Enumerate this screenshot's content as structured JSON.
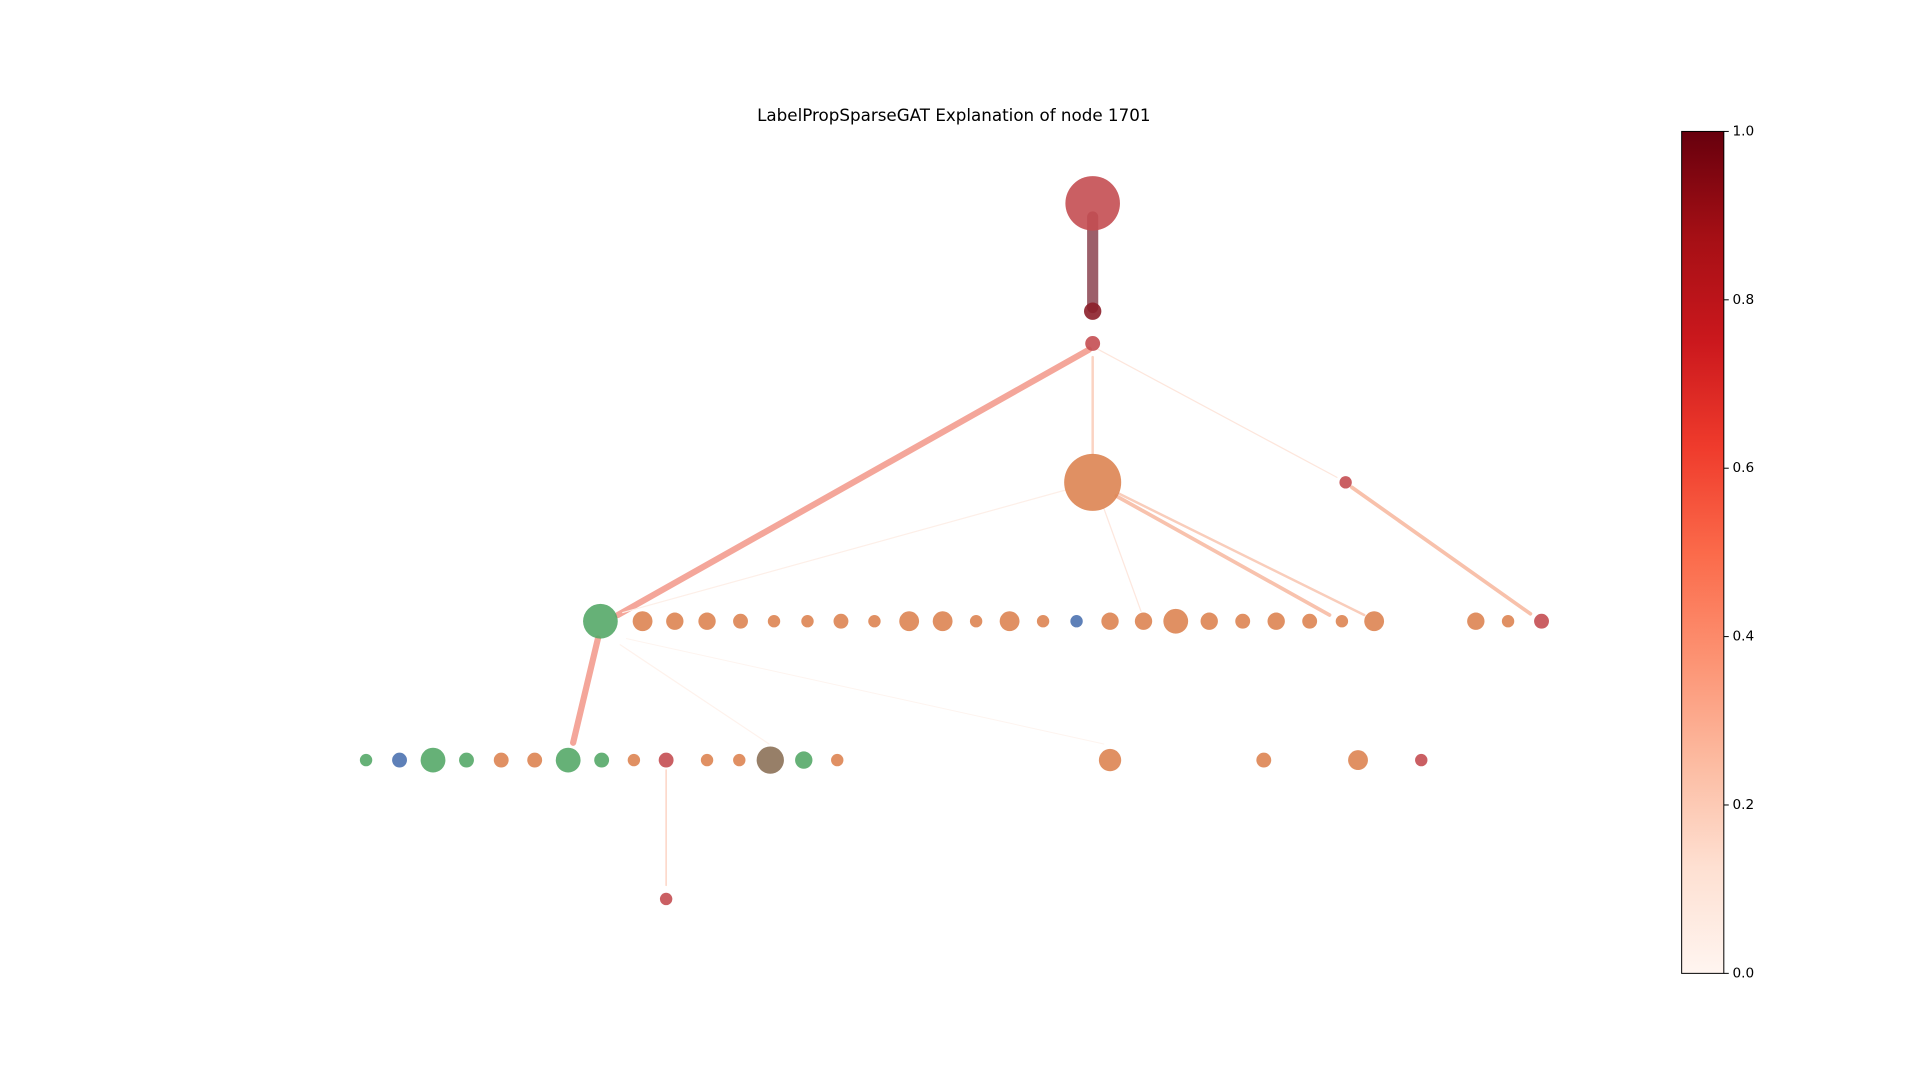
{
  "title": "LabelPropSparseGAT Explanation of node 1701",
  "colorbar": {
    "colormap": "Reds",
    "lim": [
      0,
      1
    ],
    "ticks": [
      {
        "value": 0,
        "label": "0.0"
      },
      {
        "value": 0.2,
        "label": "0.2"
      },
      {
        "value": 0.4,
        "label": "0.4"
      },
      {
        "value": 0.6,
        "label": "0.6"
      },
      {
        "value": 0.8,
        "label": "0.8"
      },
      {
        "value": 1,
        "label": "1.0"
      }
    ]
  }
}
